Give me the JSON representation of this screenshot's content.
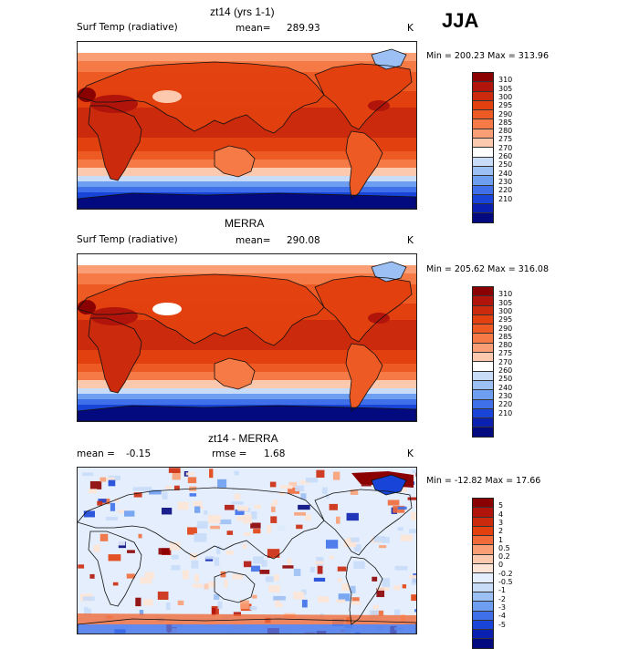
{
  "season": "JJA",
  "panels": [
    {
      "title": "zt14 (yrs 1-1)",
      "left_label": "Surf Temp (radiative)",
      "mean_label": "mean=",
      "mean_value": "289.93",
      "units": "K",
      "minmax": "Min = 200.23 Max = 313.96",
      "kind": "abs",
      "colorbar": {
        "labels": [
          "310",
          "305",
          "300",
          "295",
          "290",
          "285",
          "280",
          "275",
          "270",
          "260",
          "250",
          "240",
          "230",
          "220",
          "210"
        ],
        "colors": [
          "#8b0000",
          "#b0140a",
          "#cc2a0c",
          "#e2400f",
          "#ee5a24",
          "#f57a45",
          "#fa9e76",
          "#fdc9ae",
          "#ffffff",
          "#c8dcf8",
          "#9cc0f4",
          "#6e9ef0",
          "#3f70ea",
          "#1845d8",
          "#0a20b0",
          "#030a80"
        ]
      }
    },
    {
      "title": "MERRA",
      "left_label": "Surf Temp (radiative)",
      "mean_label": "mean=",
      "mean_value": "290.08",
      "units": "K",
      "minmax": "Min = 205.62 Max = 316.08",
      "kind": "abs",
      "colorbar": {
        "labels": [
          "310",
          "305",
          "300",
          "295",
          "290",
          "285",
          "280",
          "275",
          "270",
          "260",
          "250",
          "240",
          "230",
          "220",
          "210"
        ],
        "colors": [
          "#8b0000",
          "#b0140a",
          "#cc2a0c",
          "#e2400f",
          "#ee5a24",
          "#f57a45",
          "#fa9e76",
          "#fdc9ae",
          "#ffffff",
          "#c8dcf8",
          "#9cc0f4",
          "#6e9ef0",
          "#3f70ea",
          "#1845d8",
          "#0a20b0",
          "#030a80"
        ]
      }
    },
    {
      "title": "zt14 - MERRA",
      "left_label": "mean =",
      "left_value": "-0.15",
      "mean_label": "rmse =",
      "mean_value": "1.68",
      "units": "K",
      "minmax": "Min = -12.82 Max =  17.66",
      "kind": "diff",
      "colorbar": {
        "labels": [
          "5",
          "4",
          "3",
          "2",
          "1",
          "0.5",
          "0.2",
          "0",
          "-0.2",
          "-0.5",
          "-1",
          "-2",
          "-3",
          "-4",
          "-5"
        ],
        "colors": [
          "#8b0000",
          "#b0140a",
          "#cc2a0c",
          "#e2400f",
          "#f06a3a",
          "#fa9e76",
          "#fdc9ae",
          "#fde4d6",
          "#e4eefc",
          "#c8dcf8",
          "#9cc0f4",
          "#6e9ef0",
          "#3f70ea",
          "#1845d8",
          "#0a20b0",
          "#030a80"
        ]
      }
    }
  ]
}
